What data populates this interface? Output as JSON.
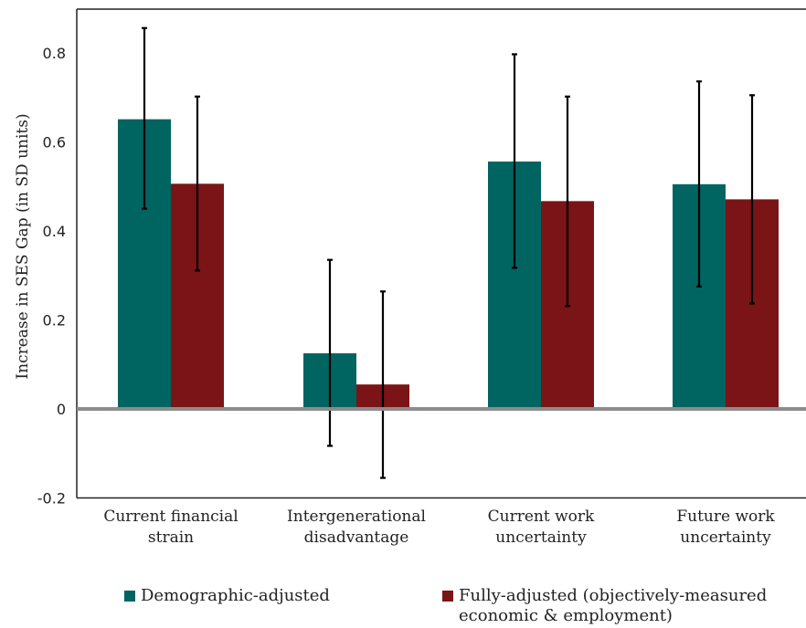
{
  "chart_data": {
    "type": "bar",
    "title": "",
    "xlabel": "",
    "ylabel": "Increase in SES Gap  (in SD units)",
    "ylim": [
      -0.2,
      0.9
    ],
    "yticks": [
      0.8,
      0.6,
      0.4,
      0.2,
      0,
      -0.2
    ],
    "ytick_labels": [
      "0.8",
      "0.6",
      "0.4",
      "0.2",
      "0",
      "-0.2"
    ],
    "categories": [
      [
        "Current financial",
        "strain"
      ],
      [
        "Intergenerational",
        "disadvantage"
      ],
      [
        "Current work",
        "uncertainty"
      ],
      [
        "Future work",
        "uncertainty"
      ]
    ],
    "series": [
      {
        "name": "Demographic-adjusted",
        "color": "#006461",
        "values": [
          0.651,
          0.125,
          0.556,
          0.505
        ],
        "error_low": [
          0.45,
          -0.083,
          0.317,
          0.275
        ],
        "error_high": [
          0.856,
          0.335,
          0.797,
          0.736
        ]
      },
      {
        "name": "Fully-adjusted (objectively-measured economic & employment)",
        "color": "#7b1416",
        "values": [
          0.506,
          0.055,
          0.467,
          0.471
        ],
        "error_low": [
          0.311,
          -0.155,
          0.231,
          0.237
        ],
        "error_high": [
          0.702,
          0.264,
          0.702,
          0.705
        ]
      }
    ],
    "grid": false,
    "legend_position": "bottom"
  },
  "legend": {
    "items": [
      {
        "label": "Demographic-adjusted",
        "color": "#006461"
      },
      {
        "label_lines": [
          "Fully-adjusted (objectively-measured",
          "economic & employment)"
        ],
        "color": "#7b1416"
      }
    ]
  }
}
